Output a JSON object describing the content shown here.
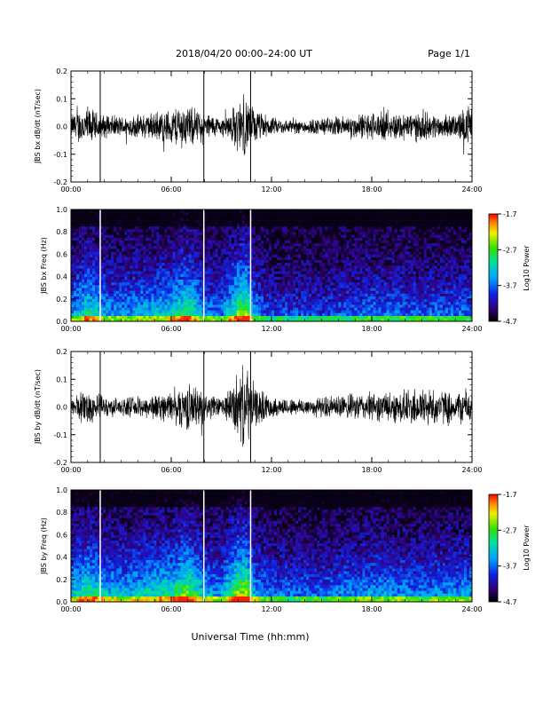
{
  "header": {
    "title": "2018/04/20  00:00–24:00 UT",
    "page": "Page 1/1"
  },
  "chart_data": [
    {
      "type": "line",
      "name": "bx-dbdt",
      "ylabel": "JBS bx dB/dt (nT/sec)",
      "xlim": [
        0,
        24
      ],
      "ylim": [
        -0.2,
        0.2
      ],
      "xticks": [
        "00:00",
        "06:00",
        "12:00",
        "18:00",
        "24:00"
      ],
      "yticks": [
        "-0.2",
        "-0.1",
        "0.0",
        "0.1",
        "0.2"
      ],
      "spike_hours": [
        1.75,
        7.95,
        10.75
      ],
      "envelope": {
        "hours": [
          0,
          0.5,
          1,
          1.5,
          2,
          3,
          4,
          5,
          6,
          6.5,
          7,
          7.5,
          8,
          9,
          9.5,
          10,
          10.5,
          11,
          12,
          13,
          14,
          15,
          16,
          17,
          18,
          19,
          20,
          21,
          22,
          23,
          24
        ],
        "amplitude": [
          0.04,
          0.06,
          0.07,
          0.05,
          0.04,
          0.035,
          0.04,
          0.05,
          0.06,
          0.08,
          0.07,
          0.06,
          0.05,
          0.03,
          0.05,
          0.09,
          0.1,
          0.06,
          0.03,
          0.025,
          0.025,
          0.03,
          0.035,
          0.04,
          0.05,
          0.045,
          0.05,
          0.05,
          0.04,
          0.04,
          0.08
        ]
      }
    },
    {
      "type": "heatmap",
      "name": "bx-spectrogram",
      "ylabel": "JBS bx Freq (Hz)",
      "colorbar_label": "Log10 Power",
      "colorbar_ticks": [
        "-1.7",
        "-2.7",
        "-3.7",
        "-4.7"
      ],
      "zlim": [
        -4.7,
        -1.7
      ],
      "xlim": [
        0,
        24
      ],
      "ylim": [
        0,
        1.0
      ],
      "xticks": [
        "00:00",
        "06:00",
        "12:00",
        "18:00",
        "24:00"
      ],
      "yticks": [
        "0.0",
        "0.2",
        "0.4",
        "0.6",
        "0.8",
        "1.0"
      ],
      "gap_hours": [
        1.75,
        7.95,
        10.75
      ]
    },
    {
      "type": "line",
      "name": "by-dbdt",
      "ylabel": "JBS by dB/dt (nT/sec)",
      "xlim": [
        0,
        24
      ],
      "ylim": [
        -0.2,
        0.2
      ],
      "xticks": [
        "00:00",
        "06:00",
        "12:00",
        "18:00",
        "24:00"
      ],
      "yticks": [
        "-0.2",
        "-0.1",
        "0.0",
        "0.1",
        "0.2"
      ],
      "spike_hours": [
        1.75,
        7.95,
        10.75
      ],
      "envelope": {
        "hours": [
          0,
          0.5,
          1,
          1.5,
          2,
          3,
          4,
          5,
          6,
          6.5,
          7,
          7.5,
          8,
          9,
          9.5,
          10,
          10.5,
          11,
          12,
          13,
          14,
          15,
          16,
          17,
          18,
          19,
          20,
          21,
          22,
          23,
          24
        ],
        "amplitude": [
          0.03,
          0.05,
          0.06,
          0.05,
          0.035,
          0.03,
          0.035,
          0.045,
          0.05,
          0.07,
          0.08,
          0.07,
          0.05,
          0.03,
          0.06,
          0.12,
          0.14,
          0.07,
          0.035,
          0.03,
          0.03,
          0.035,
          0.04,
          0.045,
          0.05,
          0.05,
          0.06,
          0.07,
          0.06,
          0.05,
          0.07
        ]
      }
    },
    {
      "type": "heatmap",
      "name": "by-spectrogram",
      "ylabel": "JBS by Freq (Hz)",
      "colorbar_label": "Log10 Power",
      "colorbar_ticks": [
        "-1.7",
        "-2.7",
        "-3.7",
        "-4.7"
      ],
      "zlim": [
        -4.7,
        -1.7
      ],
      "xlim": [
        0,
        24
      ],
      "ylim": [
        0,
        1.0
      ],
      "xticks": [
        "00:00",
        "06:00",
        "12:00",
        "18:00",
        "24:00"
      ],
      "yticks": [
        "0.0",
        "0.2",
        "0.4",
        "0.6",
        "0.8",
        "1.0"
      ],
      "gap_hours": [
        1.75,
        7.95,
        10.75
      ]
    }
  ],
  "xaxis_label": "Universal Time (hh:mm)"
}
